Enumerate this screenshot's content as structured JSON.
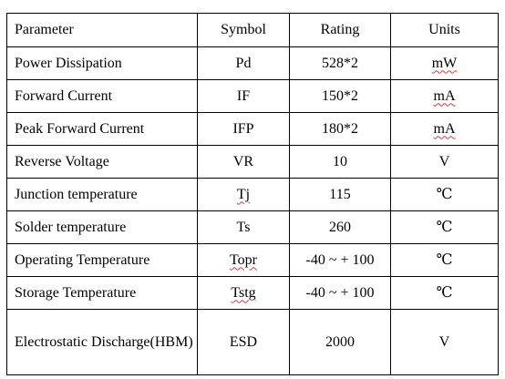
{
  "table": {
    "headers": {
      "parameter": "Parameter",
      "symbol": "Symbol",
      "rating": "Rating",
      "units": "Units"
    },
    "rows": [
      {
        "parameter": "Power Dissipation",
        "symbol": "Pd",
        "rating": "528*2",
        "units": "mW"
      },
      {
        "parameter": "Forward Current",
        "symbol": "IF",
        "rating": "150*2",
        "units": "mA"
      },
      {
        "parameter": "Peak Forward Current",
        "symbol": "IFP",
        "rating": "180*2",
        "units": "mA"
      },
      {
        "parameter": "Reverse Voltage",
        "symbol": "VR",
        "rating": "10",
        "units": "V"
      },
      {
        "parameter": "Junction temperature",
        "symbol": "Tj",
        "rating": "115",
        "units": "℃"
      },
      {
        "parameter": "Solder temperature",
        "symbol": "Ts",
        "rating": "260",
        "units": "℃"
      },
      {
        "parameter": "Operating Temperature",
        "symbol": "Topr",
        "rating": "-40 ~ + 100",
        "units": "℃"
      },
      {
        "parameter": "Storage Temperature",
        "symbol": "Tstg",
        "rating": "-40 ~ + 100",
        "units": "℃"
      },
      {
        "parameter": "Electrostatic Discharge(HBM)",
        "symbol": "ESD",
        "rating": "2000",
        "units": "V"
      }
    ]
  }
}
